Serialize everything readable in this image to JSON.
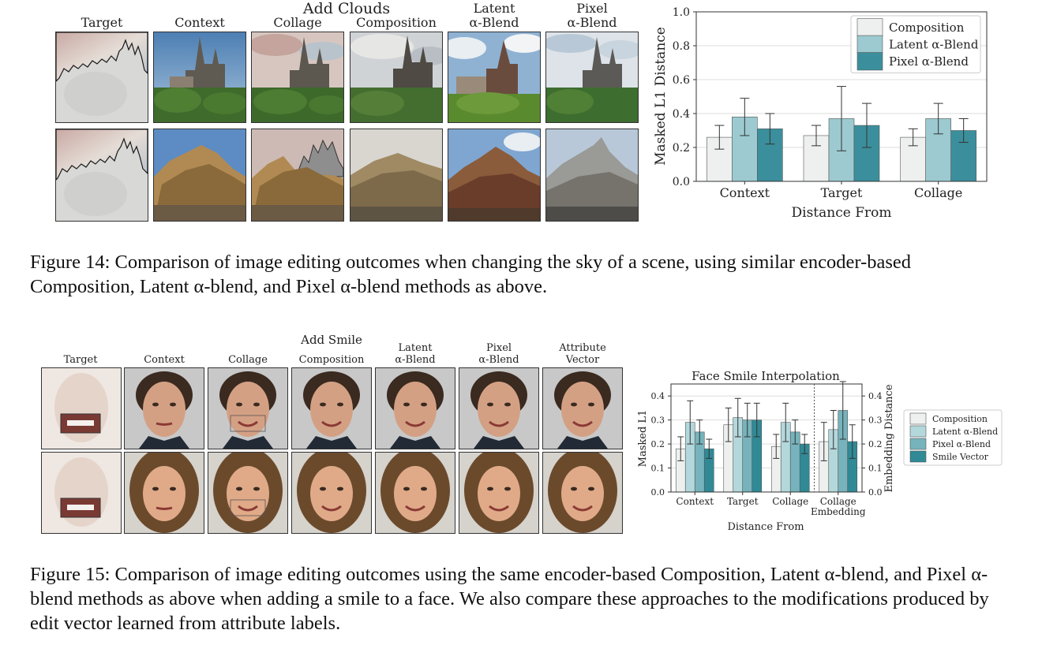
{
  "fig14": {
    "group_title": "Add Clouds",
    "col_headers": [
      "Target",
      "Context",
      "Collage",
      "Composition",
      "Latent\nα-Blend",
      "Pixel\nα-Blend"
    ],
    "caption_label": "Figure 14:",
    "caption_text": "Comparison of image editing outcomes when changing the sky of a scene, using similar encoder-based Composition, Latent α-blend, and Pixel α-blend methods as above."
  },
  "fig15": {
    "group_title": "Add Smile",
    "col_headers": [
      "Target",
      "Context",
      "Collage",
      "Composition",
      "Latent\nα-Blend",
      "Pixel\nα-Blend",
      "Attribute\nVector"
    ],
    "caption_label": "Figure 15:",
    "caption_text": "Comparison of image editing outcomes using the same encoder-based Composition, Latent α-blend, and Pixel α-blend methods as above when adding a smile to a face. We also compare these approaches to the modifications produced by edit vector learned from attribute labels."
  },
  "chart_data": [
    {
      "type": "bar",
      "title": "",
      "xlabel": "Distance From",
      "ylabel": "Masked L1 Distance",
      "ylim": [
        0,
        1.0
      ],
      "yticks": [
        "0.0",
        "0.2",
        "0.4",
        "0.6",
        "0.8",
        "1.0"
      ],
      "grid": true,
      "legend_position": "top-right",
      "categories": [
        "Context",
        "Target",
        "Collage"
      ],
      "series": [
        {
          "name": "Composition",
          "color": "#eef0f0",
          "values": [
            0.26,
            0.27,
            0.26
          ],
          "err": [
            0.07,
            0.06,
            0.05
          ]
        },
        {
          "name": "Latent α-Blend",
          "color": "#9ccad0",
          "values": [
            0.38,
            0.37,
            0.37
          ],
          "err": [
            0.11,
            0.19,
            0.09
          ]
        },
        {
          "name": "Pixel α-Blend",
          "color": "#3b8f9c",
          "values": [
            0.31,
            0.33,
            0.3
          ],
          "err": [
            0.09,
            0.13,
            0.07
          ]
        }
      ]
    },
    {
      "type": "bar",
      "title": "Face Smile Interpolation",
      "xlabel": "Distance From",
      "ylabel": "Masked L1",
      "y2label": "Embedding Distance",
      "ylim": [
        0,
        0.45
      ],
      "yticks": [
        "0.0",
        "0.1",
        "0.2",
        "0.3",
        "0.4"
      ],
      "y2ticks": [
        "0.0",
        "0.1",
        "0.2",
        "0.3",
        "0.4"
      ],
      "grid": true,
      "legend_position": "right, outside",
      "categories": [
        "Context",
        "Target",
        "Collage",
        "Collage\nEmbedding"
      ],
      "series": [
        {
          "name": "Composition",
          "color": "#eef0f0",
          "values": [
            0.18,
            0.28,
            0.19,
            0.21
          ],
          "err": [
            0.05,
            0.07,
            0.05,
            0.08
          ]
        },
        {
          "name": "Latent α-Blend",
          "color": "#b3d8dc",
          "values": [
            0.29,
            0.31,
            0.29,
            0.26
          ],
          "err": [
            0.09,
            0.08,
            0.08,
            0.08
          ]
        },
        {
          "name": "Pixel α-Blend",
          "color": "#76b3bc",
          "values": [
            0.25,
            0.3,
            0.25,
            0.34
          ],
          "err": [
            0.05,
            0.07,
            0.05,
            0.12
          ]
        },
        {
          "name": "Smile Vector",
          "color": "#2f8a96",
          "values": [
            0.18,
            0.3,
            0.2,
            0.21
          ],
          "err": [
            0.04,
            0.07,
            0.04,
            0.07
          ]
        }
      ]
    }
  ]
}
